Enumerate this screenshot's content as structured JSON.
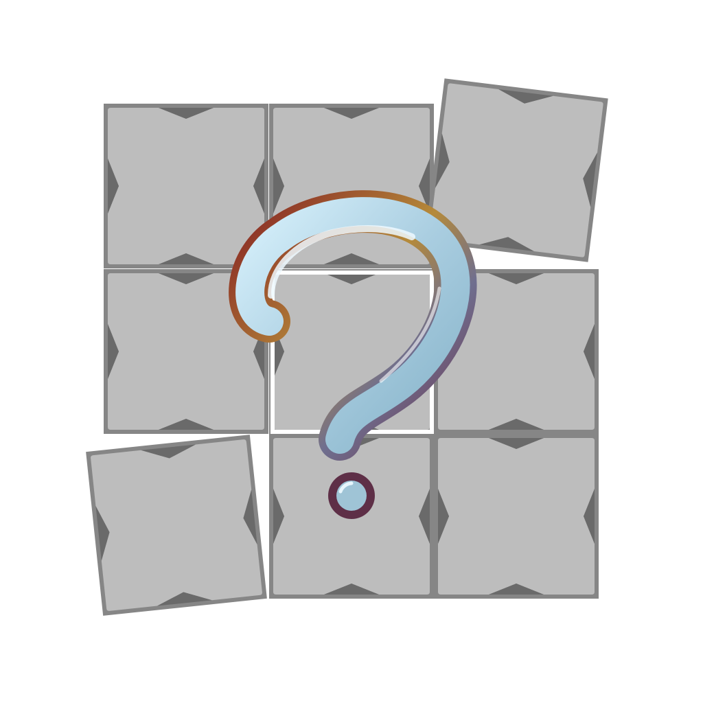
{
  "icon": {
    "name": "question-mark-tile-grid-icon",
    "symbol": "question-mark-icon",
    "tile": "stone-tile-icon"
  },
  "grid": {
    "rows": 3,
    "columns": 3,
    "tiles": [
      {
        "id": "tile-r1c1",
        "row": 1,
        "col": 1,
        "state": "placed"
      },
      {
        "id": "tile-r1c2",
        "row": 1,
        "col": 2,
        "state": "placed"
      },
      {
        "id": "tile-r1c3",
        "row": 1,
        "col": 3,
        "state": "displaced"
      },
      {
        "id": "tile-r2c1",
        "row": 2,
        "col": 1,
        "state": "placed"
      },
      {
        "id": "tile-r2c2",
        "row": 2,
        "col": 2,
        "state": "highlighted"
      },
      {
        "id": "tile-r2c3",
        "row": 2,
        "col": 3,
        "state": "placed"
      },
      {
        "id": "tile-r3c1",
        "row": 3,
        "col": 1,
        "state": "displaced"
      },
      {
        "id": "tile-r3c2",
        "row": 3,
        "col": 2,
        "state": "placed"
      },
      {
        "id": "tile-r3c3",
        "row": 3,
        "col": 3,
        "state": "placed"
      }
    ]
  },
  "colors": {
    "tile_face": "#bdbdbd",
    "tile_border": "#868686",
    "tile_notch": "#6a6a6a",
    "highlight_frame": "#ffffff",
    "glass_light": "#d6f0fb",
    "glass_mid": "#9fc4d6",
    "glass_dark": "#86b3c9",
    "outline_red": "#8b2c25",
    "outline_gold": "#b58a3a",
    "outline_plum": "#6e3a55",
    "outline_dot": "#5e2f47"
  }
}
